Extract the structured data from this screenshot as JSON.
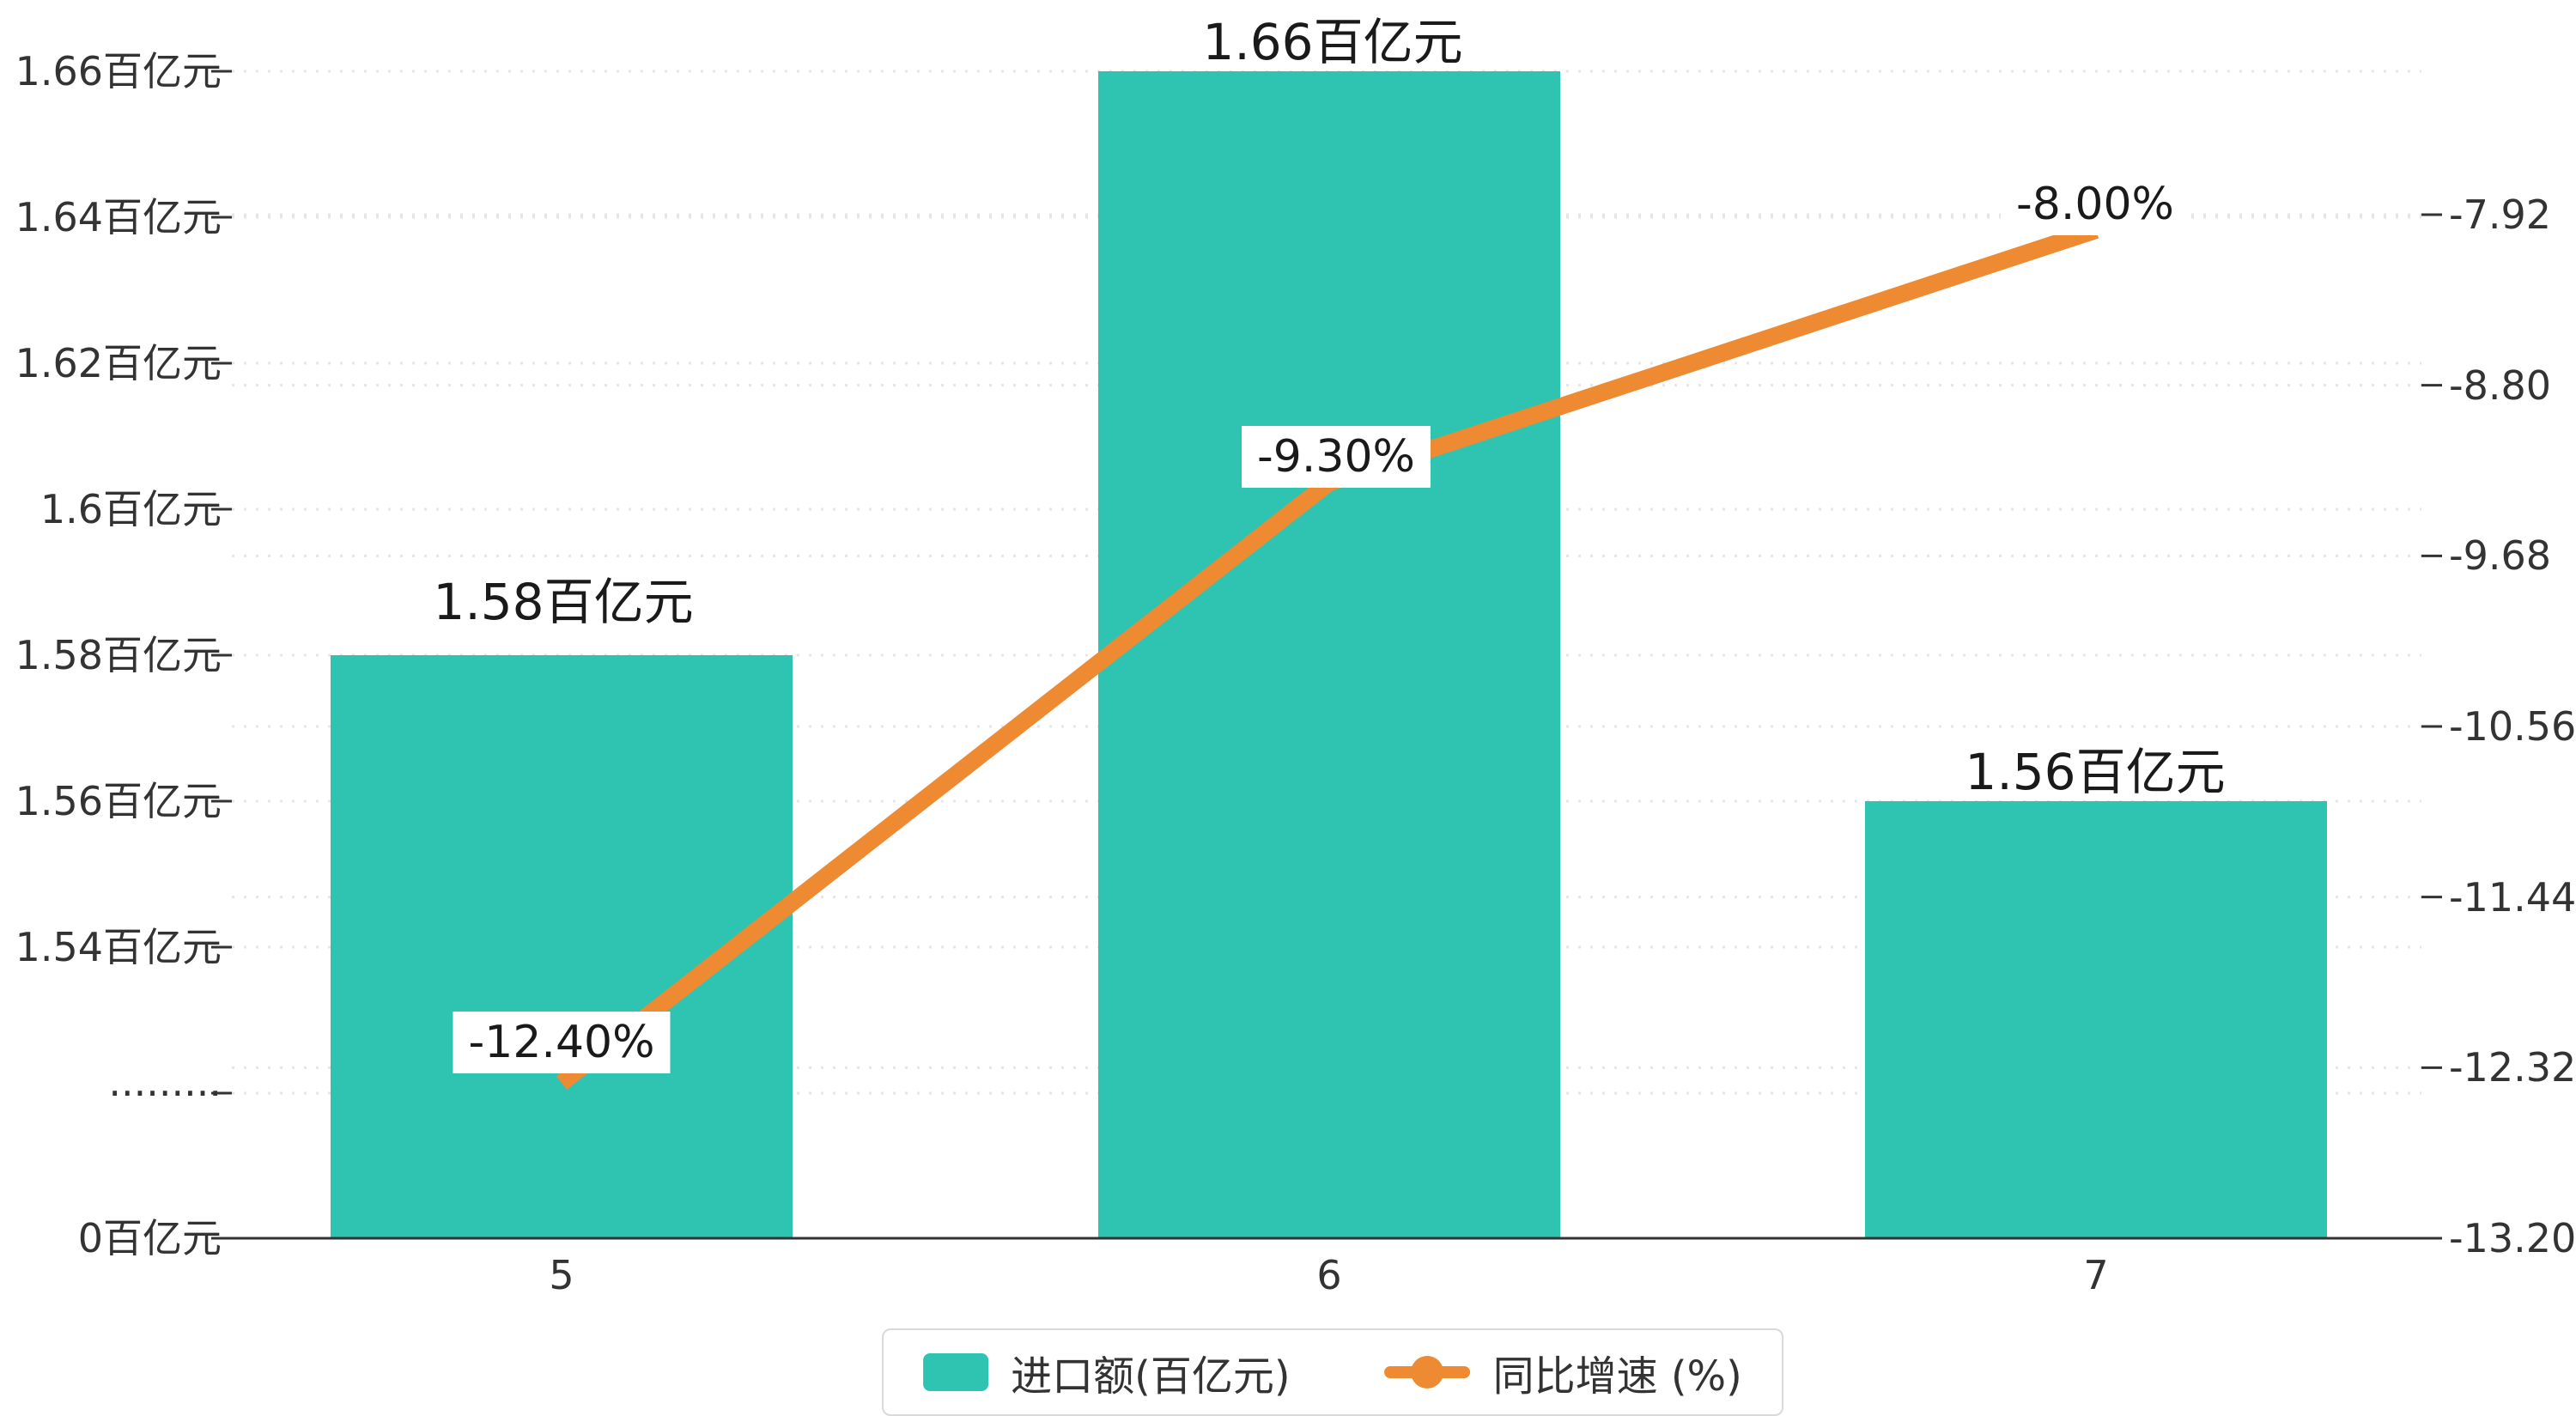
{
  "chart_data": {
    "type": "bar",
    "subtype": "bar+line dual-axis combo",
    "categories": [
      "5",
      "6",
      "7"
    ],
    "series": [
      {
        "name": "进口额(百亿元)",
        "type": "bar",
        "axis": "left",
        "color": "#2FC3B2",
        "values": [
          1.58,
          1.66,
          1.56
        ],
        "data_labels": [
          "1.58百亿元",
          "1.66百亿元",
          "1.56百亿元"
        ]
      },
      {
        "name": "同比增速 (%)",
        "type": "line",
        "axis": "right",
        "color": "#EE8A32",
        "values": [
          -12.4,
          -9.3,
          -8.0
        ],
        "data_labels": [
          "-12.40%",
          "-9.30%",
          "-8.00%"
        ]
      }
    ],
    "left_axis": {
      "tick_labels": [
        "1.66百亿元",
        "1.64百亿元",
        "1.62百亿元",
        "1.6百亿元",
        "1.58百亿元",
        "1.56百亿元",
        "1.54百亿元",
        "·········",
        "0百亿元"
      ],
      "tick_values": [
        1.66,
        1.64,
        1.62,
        1.6,
        1.58,
        1.56,
        1.54,
        null,
        0
      ],
      "broken_axis": true
    },
    "right_axis": {
      "tick_labels": [
        "-7.92",
        "-8.80",
        "-9.68",
        "-10.56",
        "-11.44",
        "-12.32",
        "-13.20"
      ],
      "range": [
        -13.2,
        -7.92
      ]
    },
    "title": "",
    "grid": "dotted horizontal",
    "legend_position": "bottom"
  }
}
